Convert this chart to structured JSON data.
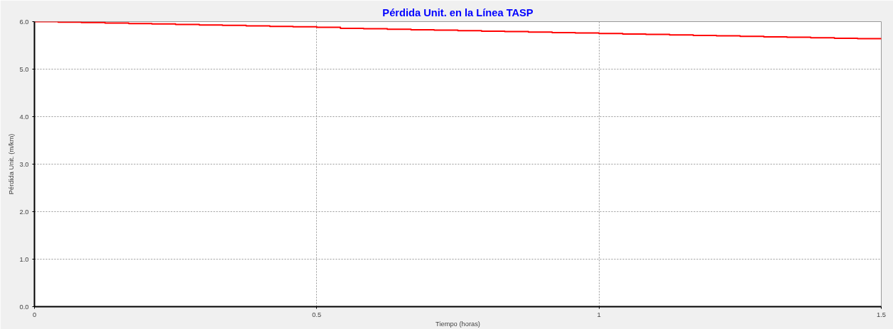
{
  "chart_data": {
    "type": "step",
    "title": "Pérdida Unit. en la Línea TASP",
    "xlabel": "Tiempo (horas)",
    "ylabel": "Pérdida Unit. (m/km)",
    "x": [
      0,
      0.042,
      0.083,
      0.125,
      0.167,
      0.208,
      0.25,
      0.292,
      0.333,
      0.375,
      0.417,
      0.458,
      0.5,
      0.542,
      0.583,
      0.625,
      0.667,
      0.708,
      0.75,
      0.792,
      0.833,
      0.875,
      0.917,
      0.958,
      1,
      1.042,
      1.083,
      1.125,
      1.167,
      1.208,
      1.25,
      1.292,
      1.333,
      1.375,
      1.417,
      1.458,
      1.5
    ],
    "series": [
      {
        "color": "#ff0000",
        "values": [
          6.0,
          5.99,
          5.98,
          5.97,
          5.96,
          5.95,
          5.94,
          5.93,
          5.92,
          5.91,
          5.9,
          5.89,
          5.88,
          5.86,
          5.85,
          5.84,
          5.83,
          5.82,
          5.81,
          5.8,
          5.79,
          5.78,
          5.77,
          5.76,
          5.75,
          5.74,
          5.73,
          5.72,
          5.71,
          5.7,
          5.69,
          5.68,
          5.67,
          5.66,
          5.65,
          5.64,
          5.63
        ]
      }
    ],
    "xlim": [
      0,
      1.5
    ],
    "ylim": [
      0,
      6.0
    ],
    "xticks": [
      0,
      0.5,
      1,
      1.5
    ],
    "yticks": [
      {
        "value": 0,
        "label": "0.0"
      },
      {
        "value": 1,
        "label": "1.0"
      },
      {
        "value": 2,
        "label": "2.0"
      },
      {
        "value": 3,
        "label": "3.0"
      },
      {
        "value": 4,
        "label": "4.0"
      },
      {
        "value": 5,
        "label": "5.0"
      },
      {
        "value": 6,
        "label": "6.0"
      }
    ],
    "grid": true,
    "line_style": "solid",
    "marker": "none"
  }
}
